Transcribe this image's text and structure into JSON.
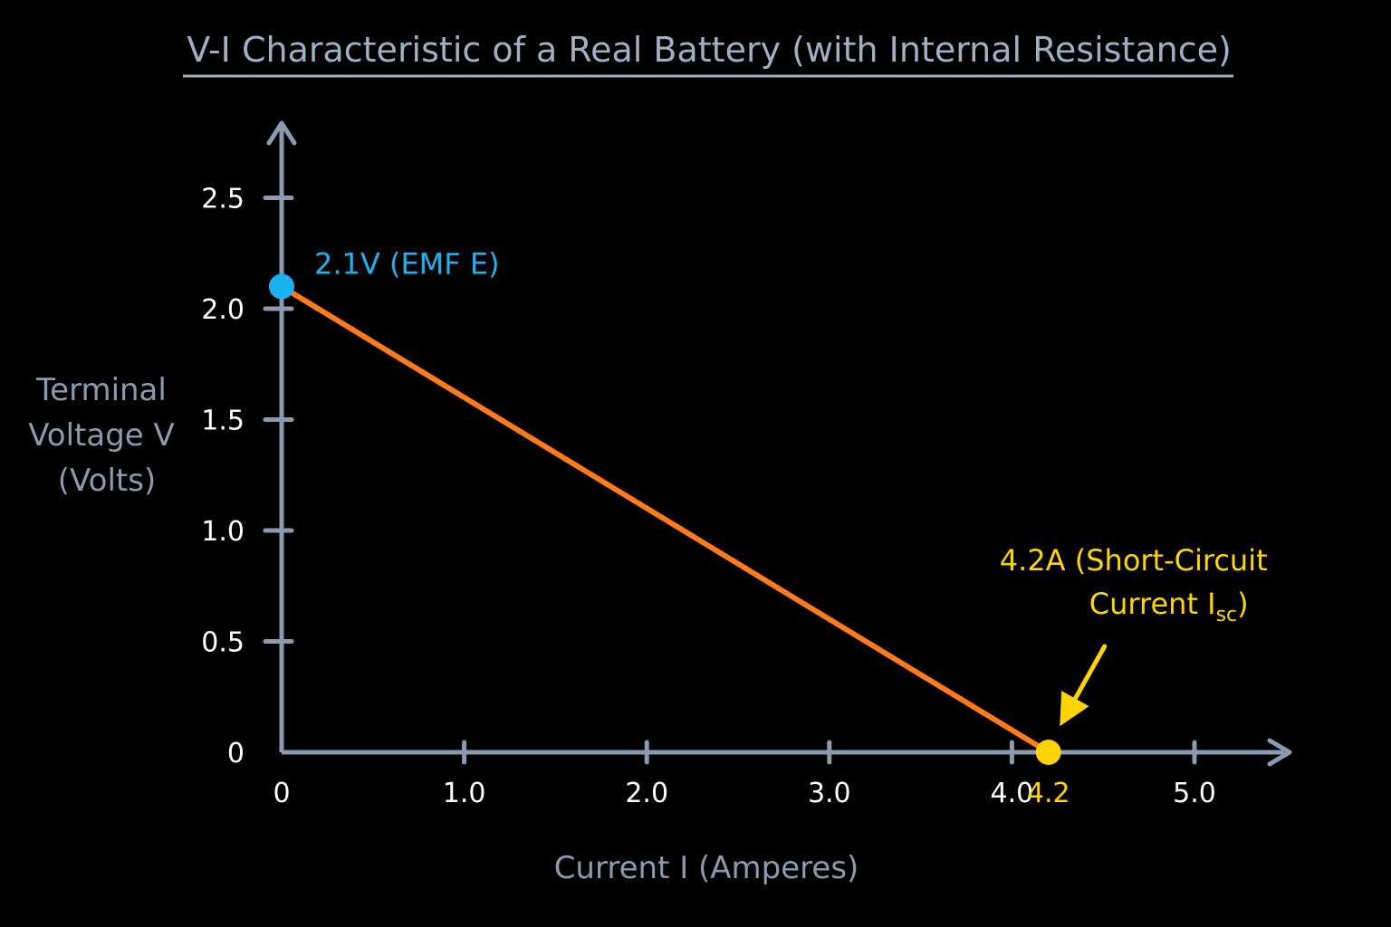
{
  "chart_data": {
    "type": "line",
    "title": "V-I Characteristic of a Real Battery (with Internal Resistance)",
    "xlabel": "Current I (Amperes)",
    "ylabel_lines": [
      "Terminal",
      "Voltage V",
      "(Volts)"
    ],
    "x_ticks": [
      "0",
      "1.0",
      "2.0",
      "3.0",
      "4.0",
      "5.0"
    ],
    "x_tick_values": [
      0,
      1,
      2,
      3,
      4,
      5
    ],
    "y_ticks": [
      "0",
      "0.5",
      "1.0",
      "1.5",
      "2.0",
      "2.5"
    ],
    "y_tick_values": [
      0,
      0.5,
      1,
      1.5,
      2,
      2.5
    ],
    "xlim": [
      0,
      5.5
    ],
    "ylim": [
      0,
      2.8
    ],
    "series": [
      {
        "x": [
          0,
          4.2
        ],
        "y": [
          2.1,
          0
        ]
      }
    ],
    "special_tick": {
      "value": 4.2,
      "label": "4.2"
    },
    "annotations": {
      "emf": {
        "text": "2.1V (EMF E)",
        "x": 0,
        "y": 2.1
      },
      "isc": {
        "line1": "4.2A (Short-Circuit",
        "line2_main": "Current I",
        "line2_sub": "sc",
        "line2_end": ")",
        "x": 4.2,
        "y": 0
      }
    },
    "grid": false,
    "legend": "none"
  },
  "colors": {
    "background": "#000000",
    "axis": "#8a9bb0",
    "title": "#9fb0c4",
    "line": "#ff7a1a",
    "emf_point": "#1ab2f0",
    "isc_point": "#ffd400",
    "tick_text": "#ffffff"
  }
}
